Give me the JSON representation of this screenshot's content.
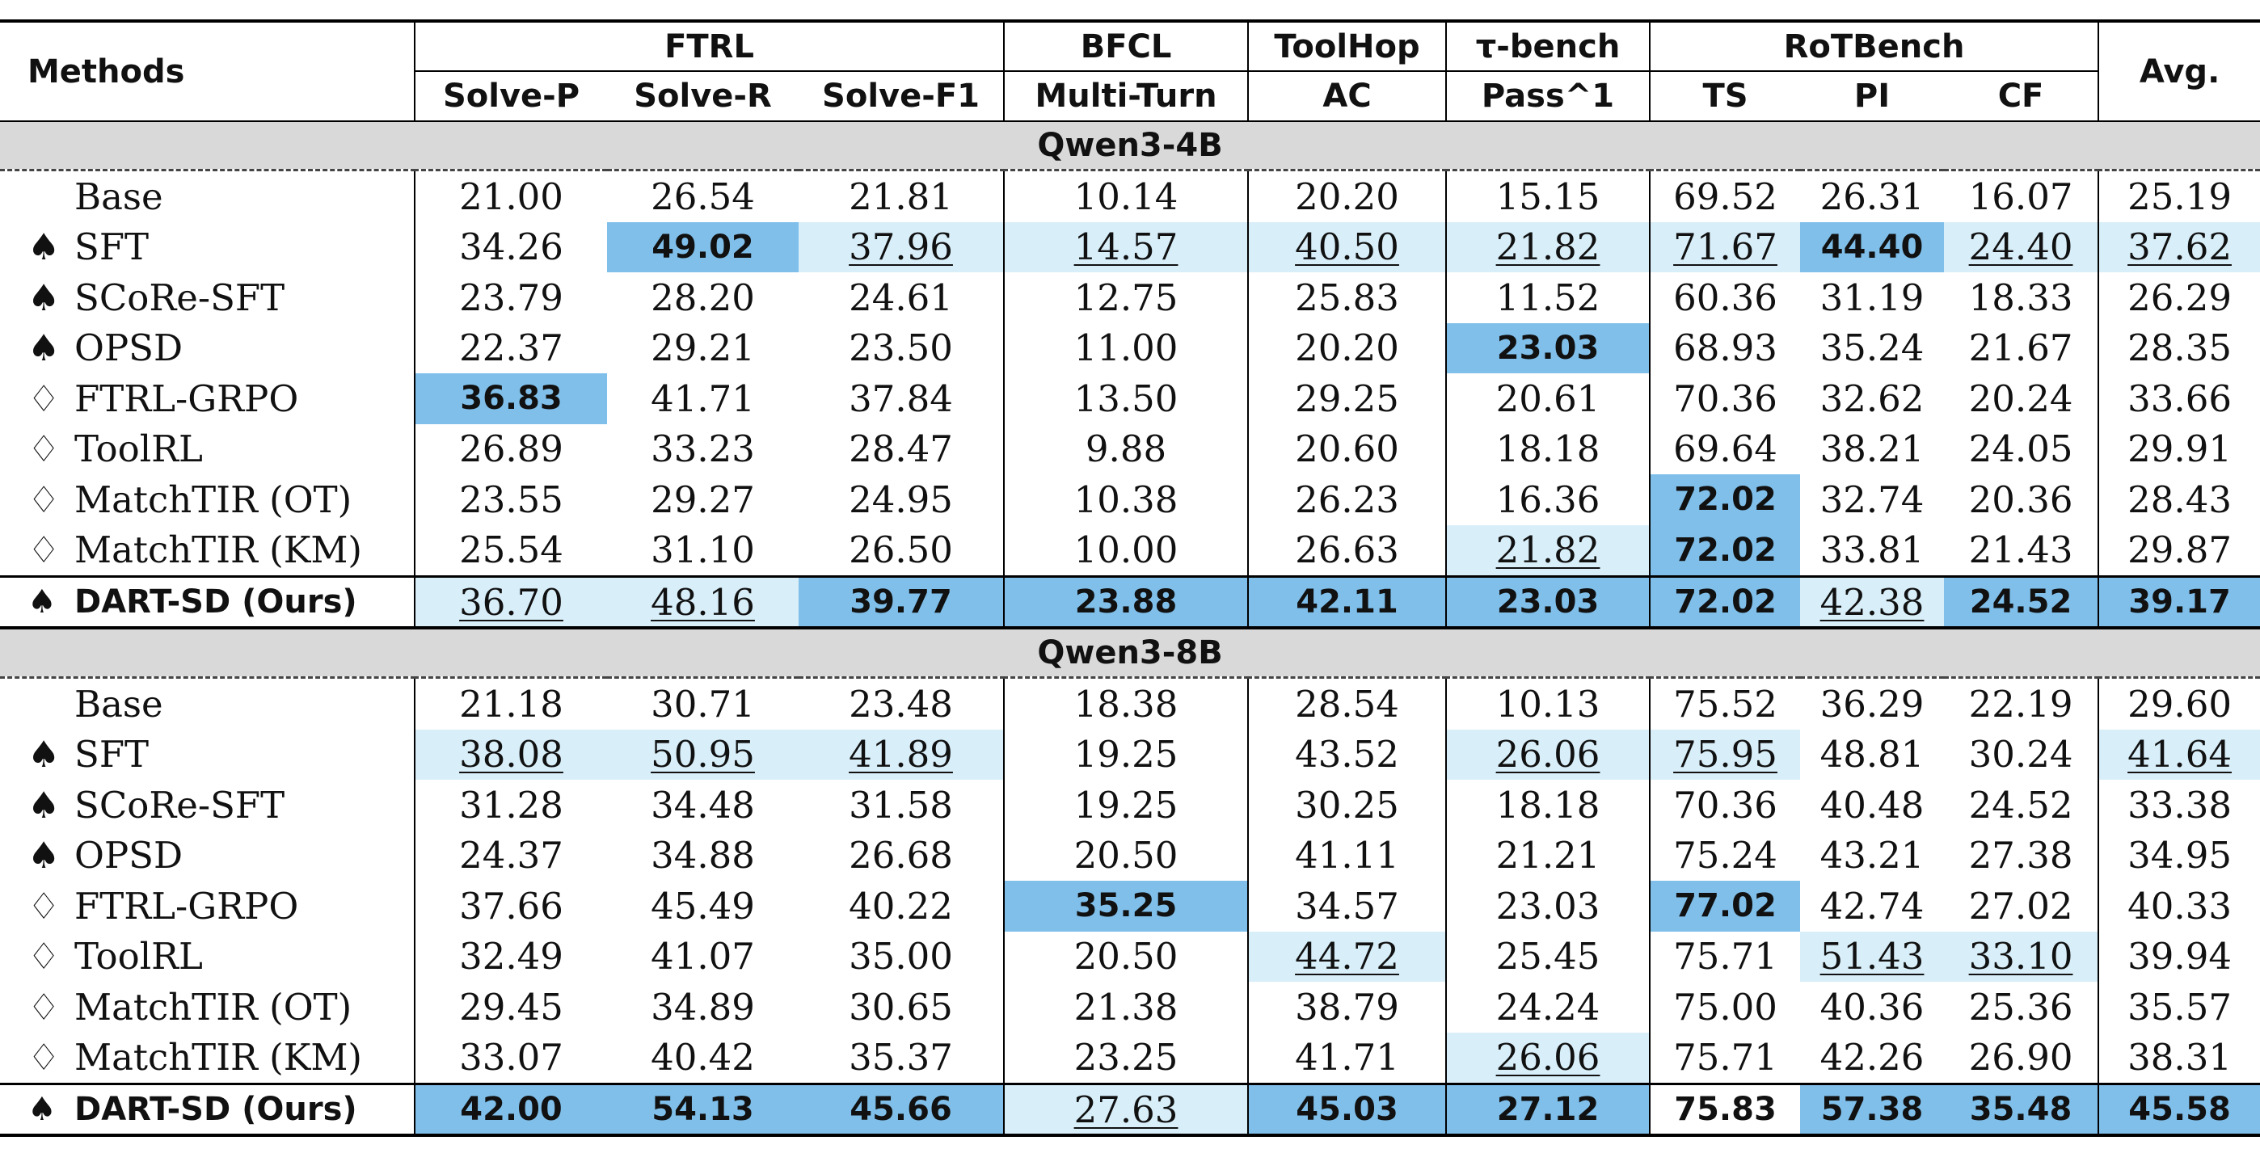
{
  "header": {
    "methods_label": "Methods",
    "avg_label": "Avg.",
    "groups": [
      "FTRL",
      "BFCL",
      "ToolHop",
      "τ-bench",
      "RoTBench"
    ],
    "metrics": [
      "Solve-P",
      "Solve-R",
      "Solve-F1",
      "Multi-Turn",
      "AC",
      "Pass^1",
      "TS",
      "PI",
      "CF"
    ]
  },
  "legend_marks": {
    "spade": "♠",
    "diamond": "♢"
  },
  "colors": {
    "best": "#7fbfea",
    "second": "#d8eef9",
    "group_band": "#d9d9d9"
  },
  "sections": [
    {
      "title": "Qwen3-4B",
      "rows": [
        {
          "mark": "",
          "method": "Base",
          "values": [
            "21.00",
            "26.54",
            "21.81",
            "10.14",
            "20.20",
            "15.15",
            "69.52",
            "26.31",
            "16.07",
            "25.19"
          ],
          "styles": [
            "",
            "",
            "",
            "",
            "",
            "",
            "",
            "",
            "",
            ""
          ]
        },
        {
          "mark": "♠",
          "method": "SFT",
          "values": [
            "34.26",
            "49.02",
            "37.96",
            "14.57",
            "40.50",
            "21.82",
            "71.67",
            "44.40",
            "24.40",
            "37.62"
          ],
          "styles": [
            "",
            "best",
            "second",
            "second",
            "second",
            "second",
            "second",
            "best",
            "second",
            "second"
          ]
        },
        {
          "mark": "♠",
          "method": "SCoRe-SFT",
          "values": [
            "23.79",
            "28.20",
            "24.61",
            "12.75",
            "25.83",
            "11.52",
            "60.36",
            "31.19",
            "18.33",
            "26.29"
          ],
          "styles": [
            "",
            "",
            "",
            "",
            "",
            "",
            "",
            "",
            "",
            ""
          ]
        },
        {
          "mark": "♠",
          "method": "OPSD",
          "values": [
            "22.37",
            "29.21",
            "23.50",
            "11.00",
            "20.20",
            "23.03",
            "68.93",
            "35.24",
            "21.67",
            "28.35"
          ],
          "styles": [
            "",
            "",
            "",
            "",
            "",
            "best",
            "",
            "",
            "",
            ""
          ]
        },
        {
          "mark": "♢",
          "method": "FTRL-GRPO",
          "values": [
            "36.83",
            "41.71",
            "37.84",
            "13.50",
            "29.25",
            "20.61",
            "70.36",
            "32.62",
            "20.24",
            "33.66"
          ],
          "styles": [
            "best",
            "",
            "",
            "",
            "",
            "",
            "",
            "",
            "",
            ""
          ]
        },
        {
          "mark": "♢",
          "method": "ToolRL",
          "values": [
            "26.89",
            "33.23",
            "28.47",
            "9.88",
            "20.60",
            "18.18",
            "69.64",
            "38.21",
            "24.05",
            "29.91"
          ],
          "styles": [
            "",
            "",
            "",
            "",
            "",
            "",
            "",
            "",
            "",
            ""
          ]
        },
        {
          "mark": "♢",
          "method": "MatchTIR (OT)",
          "values": [
            "23.55",
            "29.27",
            "24.95",
            "10.38",
            "26.23",
            "16.36",
            "72.02",
            "32.74",
            "20.36",
            "28.43"
          ],
          "styles": [
            "",
            "",
            "",
            "",
            "",
            "",
            "best",
            "",
            "",
            ""
          ]
        },
        {
          "mark": "♢",
          "method": "MatchTIR (KM)",
          "values": [
            "25.54",
            "31.10",
            "26.50",
            "10.00",
            "26.63",
            "21.82",
            "72.02",
            "33.81",
            "21.43",
            "29.87"
          ],
          "styles": [
            "",
            "",
            "",
            "",
            "",
            "second",
            "best",
            "",
            "",
            ""
          ]
        }
      ],
      "final": {
        "mark": "♠",
        "method": "DART-SD (Ours)",
        "values": [
          "36.70",
          "48.16",
          "39.77",
          "23.88",
          "42.11",
          "23.03",
          "72.02",
          "42.38",
          "24.52",
          "39.17"
        ],
        "styles": [
          "second",
          "second",
          "best",
          "best",
          "best",
          "best",
          "best",
          "second",
          "best",
          "best"
        ]
      }
    },
    {
      "title": "Qwen3-8B",
      "rows": [
        {
          "mark": "",
          "method": "Base",
          "values": [
            "21.18",
            "30.71",
            "23.48",
            "18.38",
            "28.54",
            "10.13",
            "75.52",
            "36.29",
            "22.19",
            "29.60"
          ],
          "styles": [
            "",
            "",
            "",
            "",
            "",
            "",
            "",
            "",
            "",
            ""
          ]
        },
        {
          "mark": "♠",
          "method": "SFT",
          "values": [
            "38.08",
            "50.95",
            "41.89",
            "19.25",
            "43.52",
            "26.06",
            "75.95",
            "48.81",
            "30.24",
            "41.64"
          ],
          "styles": [
            "second",
            "second",
            "second",
            "",
            "",
            "second",
            "second",
            "",
            "",
            "second"
          ]
        },
        {
          "mark": "♠",
          "method": "SCoRe-SFT",
          "values": [
            "31.28",
            "34.48",
            "31.58",
            "19.25",
            "30.25",
            "18.18",
            "70.36",
            "40.48",
            "24.52",
            "33.38"
          ],
          "styles": [
            "",
            "",
            "",
            "",
            "",
            "",
            "",
            "",
            "",
            ""
          ]
        },
        {
          "mark": "♠",
          "method": "OPSD",
          "values": [
            "24.37",
            "34.88",
            "26.68",
            "20.50",
            "41.11",
            "21.21",
            "75.24",
            "43.21",
            "27.38",
            "34.95"
          ],
          "styles": [
            "",
            "",
            "",
            "",
            "",
            "",
            "",
            "",
            "",
            ""
          ]
        },
        {
          "mark": "♢",
          "method": "FTRL-GRPO",
          "values": [
            "37.66",
            "45.49",
            "40.22",
            "35.25",
            "34.57",
            "23.03",
            "77.02",
            "42.74",
            "27.02",
            "40.33"
          ],
          "styles": [
            "",
            "",
            "",
            "best",
            "",
            "",
            "best",
            "",
            "",
            ""
          ]
        },
        {
          "mark": "♢",
          "method": "ToolRL",
          "values": [
            "32.49",
            "41.07",
            "35.00",
            "20.50",
            "44.72",
            "25.45",
            "75.71",
            "51.43",
            "33.10",
            "39.94"
          ],
          "styles": [
            "",
            "",
            "",
            "",
            "second",
            "",
            "",
            "second",
            "second",
            ""
          ]
        },
        {
          "mark": "♢",
          "method": "MatchTIR (OT)",
          "values": [
            "29.45",
            "34.89",
            "30.65",
            "21.38",
            "38.79",
            "24.24",
            "75.00",
            "40.36",
            "25.36",
            "35.57"
          ],
          "styles": [
            "",
            "",
            "",
            "",
            "",
            "",
            "",
            "",
            "",
            ""
          ]
        },
        {
          "mark": "♢",
          "method": "MatchTIR (KM)",
          "values": [
            "33.07",
            "40.42",
            "35.37",
            "23.25",
            "41.71",
            "26.06",
            "75.71",
            "42.26",
            "26.90",
            "38.31"
          ],
          "styles": [
            "",
            "",
            "",
            "",
            "",
            "second",
            "",
            "",
            "",
            ""
          ]
        }
      ],
      "final": {
        "mark": "♠",
        "method": "DART-SD (Ours)",
        "values": [
          "42.00",
          "54.13",
          "45.66",
          "27.63",
          "45.03",
          "27.12",
          "75.83",
          "57.38",
          "35.48",
          "45.58"
        ],
        "styles": [
          "best",
          "best",
          "best",
          "second",
          "best",
          "best",
          "",
          "best",
          "best",
          "best"
        ]
      }
    }
  ]
}
